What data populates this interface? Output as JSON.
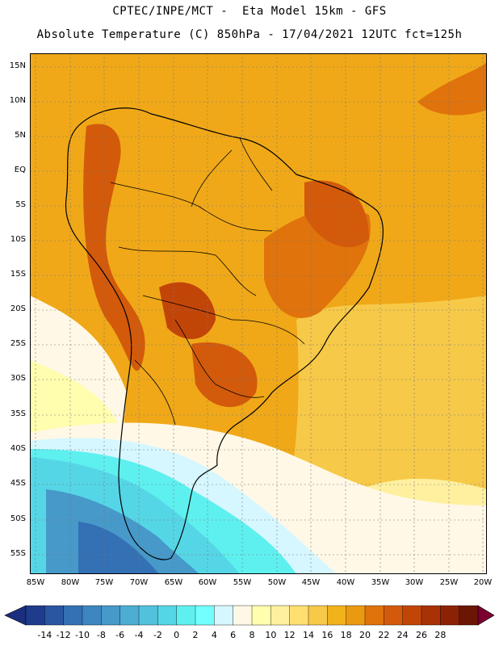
{
  "header": {
    "title_line1": "CPTEC/INPE/MCT -  Eta Model 15km - GFS",
    "title_line2": "Absolute Temperature (C) 850hPa - 17/04/2021 12UTC fct=125h"
  },
  "axes": {
    "lat_labels": [
      "15N",
      "10N",
      "5N",
      "EQ",
      "5S",
      "10S",
      "15S",
      "20S",
      "25S",
      "30S",
      "35S",
      "40S",
      "45S",
      "50S",
      "55S"
    ],
    "lon_labels": [
      "85W",
      "80W",
      "75W",
      "70W",
      "65W",
      "60W",
      "55W",
      "50W",
      "45W",
      "40W",
      "35W",
      "30W",
      "25W",
      "20W"
    ]
  },
  "colorbar": {
    "labels": [
      "-14",
      "-12",
      "-10",
      "-8",
      "-6",
      "-4",
      "-2",
      "0",
      "2",
      "4",
      "6",
      "8",
      "10",
      "12",
      "14",
      "16",
      "18",
      "20",
      "22",
      "24",
      "26",
      "28"
    ],
    "colors": [
      "#1f3b8c",
      "#2a55a0",
      "#3470b4",
      "#3d86bf",
      "#4699c9",
      "#4dadd3",
      "#52c2dc",
      "#55d6e6",
      "#5ef0ef",
      "#74ffff",
      "#d6f7ff",
      "#fff8e6",
      "#fffdae",
      "#fff0a0",
      "#ffdf70",
      "#f7c948",
      "#f2b21c",
      "#ea9a11",
      "#e0730c",
      "#d35a0a",
      "#c24508",
      "#a83206",
      "#8c2205",
      "#6b1604"
    ],
    "low_arrow_color": "#1c2e7e",
    "high_arrow_color": "#7a0030"
  },
  "colors": {
    "warm_orange": "#f0a818",
    "hot": "#d66a0e",
    "very_hot": "#c0530b",
    "ocean_yellow": "#f7d24a",
    "pale_yellow": "#fff1a6",
    "cream": "#fff8e6",
    "cyan": "#55d6e6",
    "blue": "#3f8ec7",
    "deep_blue": "#2b6aa8"
  }
}
